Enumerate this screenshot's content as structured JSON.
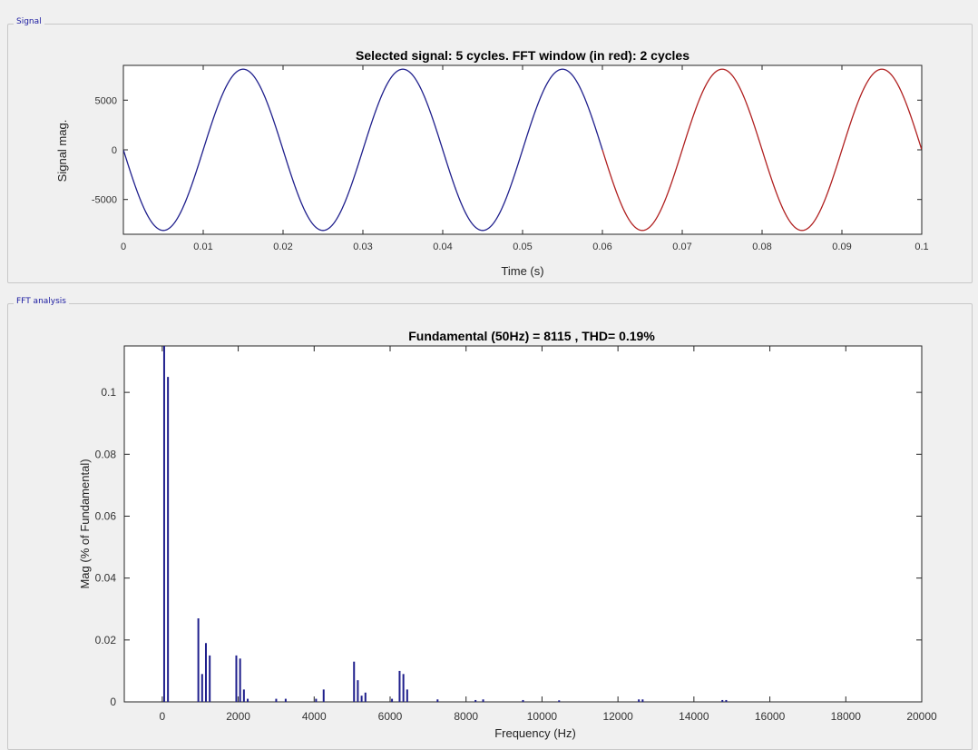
{
  "panels": {
    "signal_title": "Signal",
    "fft_title": "FFT analysis"
  },
  "chart_data": [
    {
      "type": "line",
      "title": "Selected signal: 5 cycles. FFT window (in red): 2 cycles",
      "xlabel": "Time (s)",
      "ylabel": "Signal mag.",
      "xlim": [
        0,
        0.1
      ],
      "ylim": [
        -8500,
        8500
      ],
      "x_ticks": [
        0,
        0.01,
        0.02,
        0.03,
        0.04,
        0.05,
        0.06,
        0.07,
        0.08,
        0.09,
        0.1
      ],
      "x_tick_labels": [
        "0",
        "0.01",
        "0.02",
        "0.03",
        "0.04",
        "0.05",
        "0.06",
        "0.07",
        "0.08",
        "0.09",
        "0.1"
      ],
      "y_ticks": [
        -5000,
        0,
        5000
      ],
      "y_tick_labels": [
        "-5000",
        "0",
        "5000"
      ],
      "grid": false,
      "signal": {
        "amplitude": 8115,
        "frequency_hz": 50,
        "phase": "negative sine"
      },
      "series": [
        {
          "color": "#1f1f8c",
          "x_range": [
            0,
            0.06
          ]
        },
        {
          "color": "#b02020",
          "x_range": [
            0.06,
            0.1
          ]
        }
      ]
    },
    {
      "type": "bar",
      "title": "Fundamental (50Hz) = 8115 , THD= 0.19%",
      "xlabel": "Frequency (Hz)",
      "ylabel": "Mag (% of Fundamental)",
      "xlim": [
        -1000,
        20000
      ],
      "ylim": [
        0,
        0.115
      ],
      "x_ticks": [
        0,
        2000,
        4000,
        6000,
        8000,
        10000,
        12000,
        14000,
        16000,
        18000,
        20000
      ],
      "x_tick_labels": [
        "0",
        "2000",
        "4000",
        "6000",
        "8000",
        "10000",
        "12000",
        "14000",
        "16000",
        "18000",
        "20000"
      ],
      "y_ticks": [
        0,
        0.02,
        0.04,
        0.06,
        0.08,
        0.1
      ],
      "y_tick_labels": [
        "0",
        "0.02",
        "0.04",
        "0.06",
        "0.08",
        "0.1"
      ],
      "grid": false,
      "bar_color": "#1f1f8c",
      "points": [
        {
          "x": 50,
          "y": 0.115
        },
        {
          "x": 150,
          "y": 0.105
        },
        {
          "x": 950,
          "y": 0.027
        },
        {
          "x": 1050,
          "y": 0.009
        },
        {
          "x": 1150,
          "y": 0.019
        },
        {
          "x": 1250,
          "y": 0.015
        },
        {
          "x": 1950,
          "y": 0.015
        },
        {
          "x": 2050,
          "y": 0.014
        },
        {
          "x": 2150,
          "y": 0.004
        },
        {
          "x": 2250,
          "y": 0.001
        },
        {
          "x": 3000,
          "y": 0.001
        },
        {
          "x": 3250,
          "y": 0.001
        },
        {
          "x": 4050,
          "y": 0.001
        },
        {
          "x": 4250,
          "y": 0.004
        },
        {
          "x": 5050,
          "y": 0.013
        },
        {
          "x": 5150,
          "y": 0.007
        },
        {
          "x": 5250,
          "y": 0.002
        },
        {
          "x": 5350,
          "y": 0.003
        },
        {
          "x": 6050,
          "y": 0.001
        },
        {
          "x": 6250,
          "y": 0.01
        },
        {
          "x": 6350,
          "y": 0.009
        },
        {
          "x": 6450,
          "y": 0.004
        },
        {
          "x": 7250,
          "y": 0.0008
        },
        {
          "x": 8250,
          "y": 0.0006
        },
        {
          "x": 8450,
          "y": 0.0008
        },
        {
          "x": 9500,
          "y": 0.0006
        },
        {
          "x": 10450,
          "y": 0.0005
        },
        {
          "x": 12550,
          "y": 0.0008
        },
        {
          "x": 12650,
          "y": 0.0008
        },
        {
          "x": 14750,
          "y": 0.0006
        },
        {
          "x": 14850,
          "y": 0.0006
        }
      ]
    }
  ]
}
